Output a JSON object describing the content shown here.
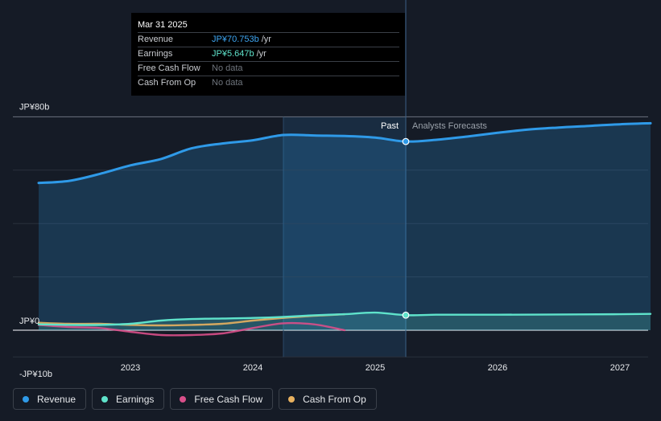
{
  "chart_data": {
    "type": "line",
    "x_unit": "year",
    "xlim": [
      2022.2,
      2027.25
    ],
    "ylim": [
      -10,
      80
    ],
    "y_ticks": [
      {
        "value": 80,
        "label": "JP¥80b"
      },
      {
        "value": 0,
        "label": "JP¥0"
      },
      {
        "value": -10,
        "label": "-JP¥10b"
      }
    ],
    "y_gridlines": [
      80,
      60,
      40,
      20,
      0
    ],
    "x_ticks": [
      {
        "value": 2023,
        "label": "2023"
      },
      {
        "value": 2024,
        "label": "2024"
      },
      {
        "value": 2025,
        "label": "2025"
      },
      {
        "value": 2026,
        "label": "2026"
      },
      {
        "value": 2027,
        "label": "2027"
      }
    ],
    "divider_x": 2025.25,
    "highlight_start_x": 2024.25,
    "past_label": "Past",
    "forecast_label": "Analysts Forecasts",
    "series": [
      {
        "name": "Revenue",
        "color": "#2f9ae8",
        "area": true,
        "points": [
          [
            2022.25,
            55.2
          ],
          [
            2022.5,
            56.0
          ],
          [
            2022.75,
            58.6
          ],
          [
            2023.0,
            61.8
          ],
          [
            2023.25,
            64.2
          ],
          [
            2023.5,
            68.2
          ],
          [
            2023.75,
            70.0
          ],
          [
            2024.0,
            71.2
          ],
          [
            2024.25,
            73.2
          ],
          [
            2024.5,
            73.0
          ],
          [
            2024.75,
            72.8
          ],
          [
            2025.0,
            72.2
          ],
          [
            2025.25,
            70.75
          ],
          [
            2025.5,
            71.4
          ],
          [
            2025.75,
            72.6
          ],
          [
            2026.0,
            74.0
          ],
          [
            2026.25,
            75.2
          ],
          [
            2026.5,
            76.0
          ],
          [
            2026.75,
            76.6
          ],
          [
            2027.0,
            77.2
          ],
          [
            2027.25,
            77.6
          ]
        ]
      },
      {
        "name": "Earnings",
        "color": "#5fe3cb",
        "area": true,
        "points": [
          [
            2022.25,
            2.2
          ],
          [
            2022.5,
            2.0
          ],
          [
            2022.75,
            2.0
          ],
          [
            2023.0,
            2.4
          ],
          [
            2023.25,
            3.6
          ],
          [
            2023.5,
            4.2
          ],
          [
            2023.75,
            4.4
          ],
          [
            2024.0,
            4.6
          ],
          [
            2024.25,
            5.0
          ],
          [
            2024.5,
            5.6
          ],
          [
            2024.75,
            6.0
          ],
          [
            2025.0,
            6.6
          ],
          [
            2025.25,
            5.647
          ],
          [
            2025.5,
            5.8
          ],
          [
            2025.75,
            5.8
          ],
          [
            2026.0,
            5.8
          ],
          [
            2026.5,
            5.9
          ],
          [
            2027.0,
            6.0
          ],
          [
            2027.25,
            6.1
          ]
        ]
      },
      {
        "name": "Free Cash Flow",
        "color": "#d94f8a",
        "area": false,
        "points": [
          [
            2022.25,
            2.0
          ],
          [
            2022.5,
            1.2
          ],
          [
            2022.75,
            0.8
          ],
          [
            2023.0,
            -0.6
          ],
          [
            2023.25,
            -1.8
          ],
          [
            2023.5,
            -1.8
          ],
          [
            2023.75,
            -1.2
          ],
          [
            2024.0,
            0.8
          ],
          [
            2024.25,
            2.6
          ],
          [
            2024.5,
            2.2
          ],
          [
            2024.75,
            0.0
          ]
        ]
      },
      {
        "name": "Cash From Op",
        "color": "#e8b15f",
        "area": false,
        "points": [
          [
            2022.25,
            2.8
          ],
          [
            2022.5,
            2.4
          ],
          [
            2022.75,
            2.4
          ],
          [
            2023.0,
            2.0
          ],
          [
            2023.25,
            1.8
          ],
          [
            2023.5,
            2.0
          ],
          [
            2023.75,
            2.4
          ],
          [
            2024.0,
            3.6
          ],
          [
            2024.25,
            4.6
          ],
          [
            2024.5,
            5.4
          ],
          [
            2024.75,
            6.0
          ]
        ]
      }
    ],
    "highlight_points": [
      {
        "series": "Revenue",
        "x": 2025.25,
        "y": 70.75
      },
      {
        "series": "Earnings",
        "x": 2025.25,
        "y": 5.647
      }
    ]
  },
  "tooltip": {
    "date": "Mar 31 2025",
    "rows": [
      {
        "label": "Revenue",
        "value": "JP¥70.753b",
        "unit": "/yr",
        "color": "#3ea6f2"
      },
      {
        "label": "Earnings",
        "value": "JP¥5.647b",
        "unit": "/yr",
        "color": "#5fe3cb"
      },
      {
        "label": "Free Cash Flow",
        "value": "No data",
        "unit": "",
        "color": "#6f757d"
      },
      {
        "label": "Cash From Op",
        "value": "No data",
        "unit": "",
        "color": "#6f757d"
      }
    ]
  },
  "legend": [
    {
      "label": "Revenue",
      "color": "#2f9ae8"
    },
    {
      "label": "Earnings",
      "color": "#5fe3cb"
    },
    {
      "label": "Free Cash Flow",
      "color": "#d94f8a"
    },
    {
      "label": "Cash From Op",
      "color": "#e8b15f"
    }
  ]
}
